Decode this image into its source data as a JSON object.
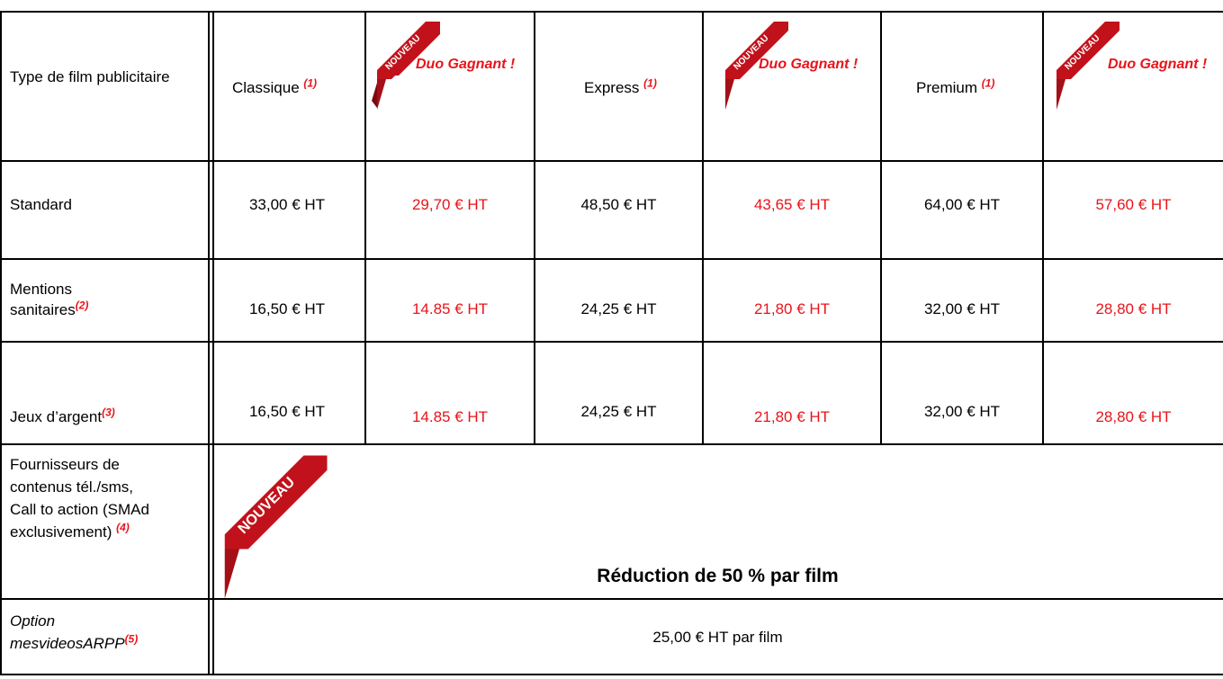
{
  "table": {
    "header": {
      "type_label": "Type de film publicitaire",
      "columns": [
        {
          "label": "Classique",
          "footnote": "(1)"
        },
        {
          "label": "Express",
          "footnote": "(1)"
        },
        {
          "label": "Premium",
          "footnote": "(1)"
        }
      ],
      "duo_label": "Duo Gagnant !",
      "ribbon_text": "NOUVEAU"
    },
    "rows": [
      {
        "label": "Standard",
        "footnote": "",
        "values": [
          "33,00 € HT",
          "29,70 € HT",
          "48,50 € HT",
          "43,65 € HT",
          "64,00 € HT",
          "57,60 € HT"
        ]
      },
      {
        "label_line1": "Mentions",
        "label_line2": "sanitaires",
        "footnote": "(2)",
        "values": [
          "16,50 € HT",
          "14.85 € HT",
          "24,25 € HT",
          "21,80 € HT",
          "32,00 € HT",
          "28,80 € HT"
        ]
      },
      {
        "label": "Jeux d’argent",
        "footnote": "(3)",
        "values": [
          "16,50 € HT",
          "14.85 € HT",
          "24,25 € HT",
          "21,80 € HT",
          "32,00 € HT",
          "28,80 € HT"
        ]
      }
    ],
    "providers": {
      "label_line1": "Fournisseurs de",
      "label_line2": "contenus tél./sms,",
      "label_line3": "Call to action (SMAd",
      "label_line4": "exclusivement)",
      "footnote": "(4)",
      "value": "Réduction de 50 % par film"
    },
    "option": {
      "label_line1": "Option",
      "label_line2": "mesvideosARPP",
      "footnote": "(5)",
      "value": "25,00 € HT par film"
    }
  },
  "colors": {
    "accent_red": "#e8141a",
    "ribbon_red": "#c1121b",
    "ribbon_dark": "#7a0a10"
  }
}
